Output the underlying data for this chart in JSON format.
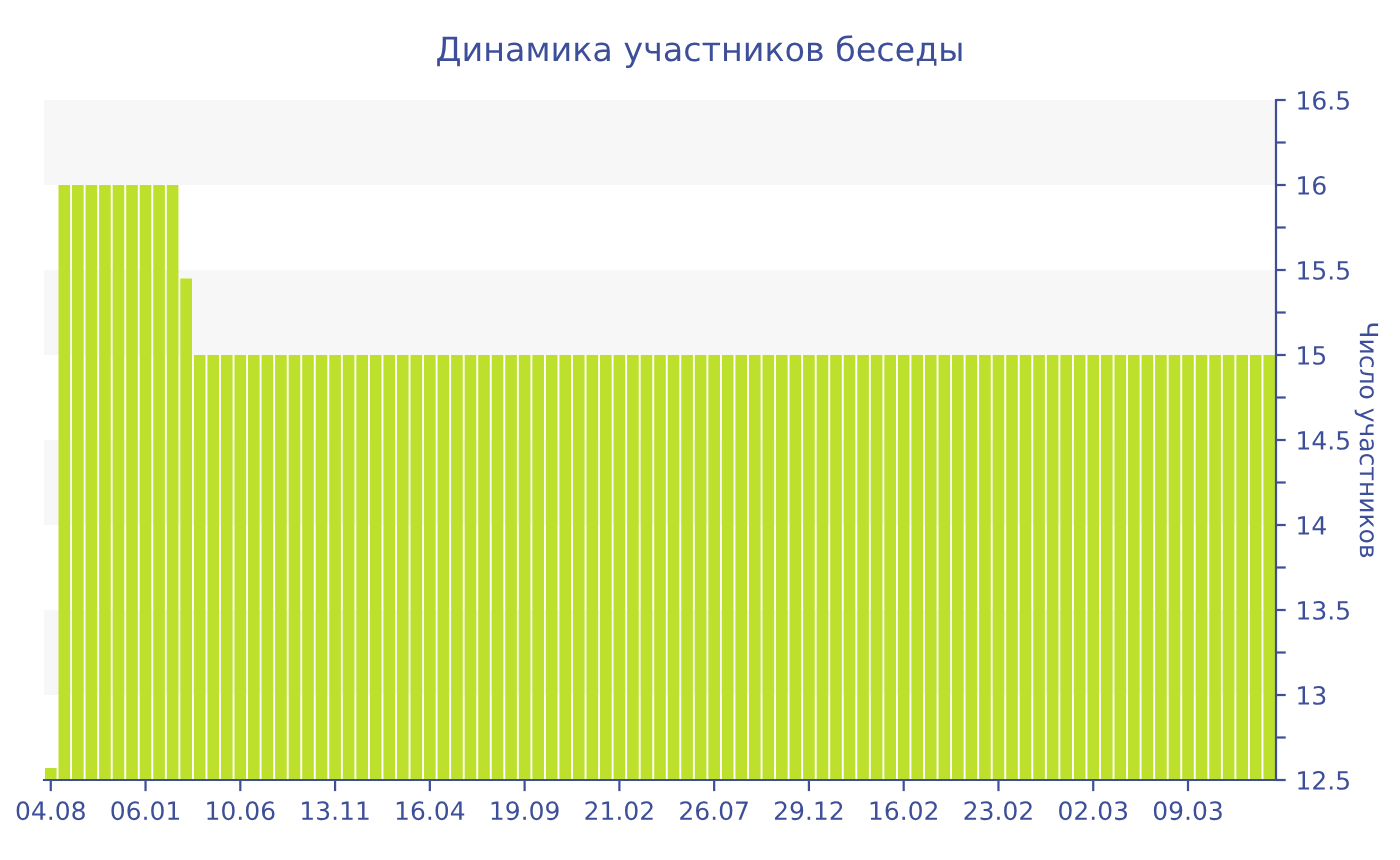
{
  "chart_data": {
    "type": "bar",
    "title": "Динамика участников беседы",
    "ylabel": "Число участников",
    "categories": [
      "04.08",
      null,
      null,
      null,
      null,
      null,
      null,
      "06.01",
      null,
      null,
      null,
      null,
      null,
      null,
      "10.06",
      null,
      null,
      null,
      null,
      null,
      null,
      "13.11",
      null,
      null,
      null,
      null,
      null,
      null,
      "16.04",
      null,
      null,
      null,
      null,
      null,
      null,
      "19.09",
      null,
      null,
      null,
      null,
      null,
      null,
      "21.02",
      null,
      null,
      null,
      null,
      null,
      null,
      "26.07",
      null,
      null,
      null,
      null,
      null,
      null,
      "29.12",
      null,
      null,
      null,
      null,
      null,
      null,
      "16.02",
      null,
      null,
      null,
      null,
      null,
      null,
      "23.02",
      null,
      null,
      null,
      null,
      null,
      null,
      "02.03",
      null,
      null,
      null,
      null,
      null,
      null,
      "09.03",
      null,
      null,
      null,
      null,
      null,
      null
    ],
    "values": [
      12.57,
      16,
      16,
      16,
      16,
      16,
      16,
      16,
      16,
      16,
      15.45,
      15,
      15,
      15,
      15,
      15,
      15,
      15,
      15,
      15,
      15,
      15,
      15,
      15,
      15,
      15,
      15,
      15,
      15,
      15,
      15,
      15,
      15,
      15,
      15,
      15,
      15,
      15,
      15,
      15,
      15,
      15,
      15,
      15,
      15,
      15,
      15,
      15,
      15,
      15,
      15,
      15,
      15,
      15,
      15,
      15,
      15,
      15,
      15,
      15,
      15,
      15,
      15,
      15,
      15,
      15,
      15,
      15,
      15,
      15,
      15,
      15,
      15,
      15,
      15,
      15,
      15,
      15,
      15,
      15,
      15,
      15,
      15,
      15,
      15,
      15,
      15,
      15,
      15,
      15,
      15
    ],
    "color": "#bde02c",
    "ylim": [
      12.5,
      16.5
    ],
    "yticks": [
      12.5,
      {
        "value": 12.75,
        "label": null
      },
      13,
      {
        "value": 13.25,
        "label": null
      },
      13.5,
      {
        "value": 13.75,
        "label": null
      },
      14,
      {
        "value": 14.25,
        "label": null
      },
      14.5,
      {
        "value": 14.75,
        "label": null
      },
      15,
      {
        "value": 15.25,
        "label": null
      },
      15.5,
      {
        "value": 15.75,
        "label": null
      },
      16,
      {
        "value": 16.25,
        "label": null
      },
      16.5
    ],
    "bands": [
      {
        "axis": "y",
        "from": 13,
        "to": 13.5,
        "color": "#f7f7f7"
      },
      {
        "axis": "y",
        "from": 14,
        "to": 14.5,
        "color": "#f7f7f7"
      },
      {
        "axis": "y",
        "from": 15,
        "to": 15.5,
        "color": "#f7f7f7"
      },
      {
        "axis": "y",
        "from": 16,
        "to": 16.5,
        "color": "#f7f7f7"
      }
    ],
    "grid": false,
    "legend": false
  }
}
